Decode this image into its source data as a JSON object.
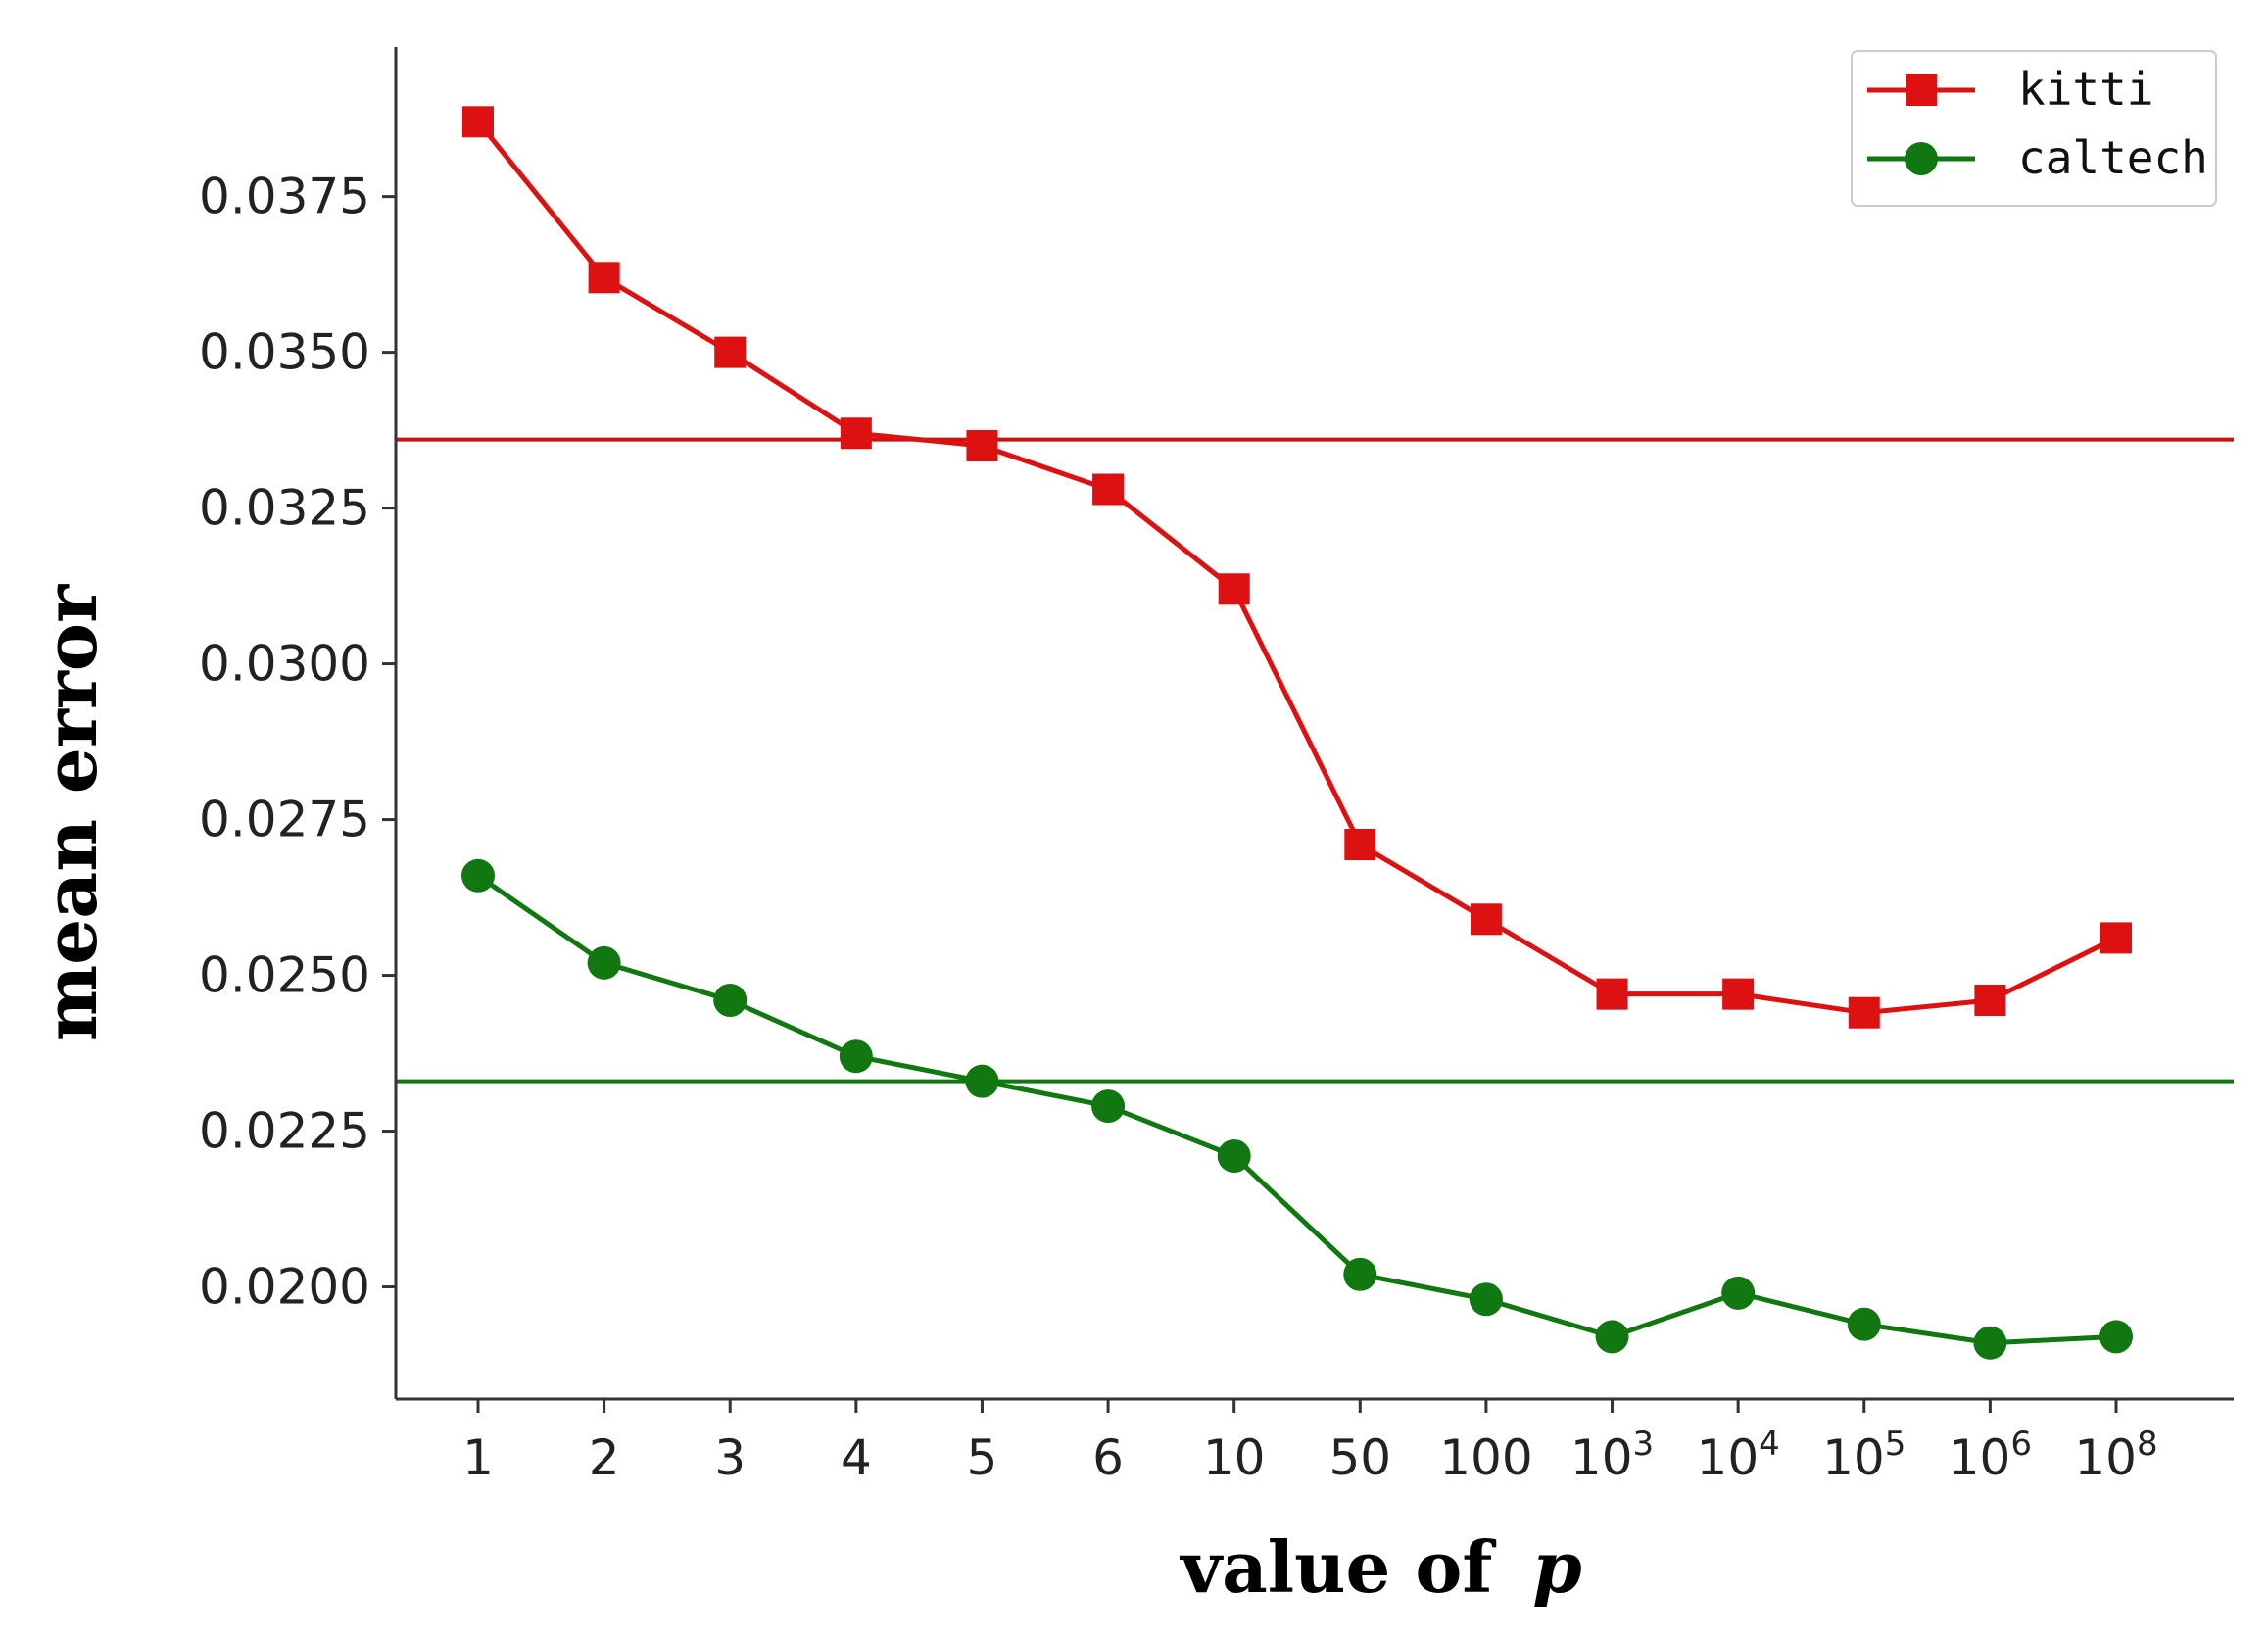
{
  "chart_data": {
    "type": "line",
    "xlabel": "value of",
    "xlabel_var": "p",
    "ylabel": "mean error",
    "categories": [
      {
        "base": "1",
        "sup": ""
      },
      {
        "base": "2",
        "sup": ""
      },
      {
        "base": "3",
        "sup": ""
      },
      {
        "base": "4",
        "sup": ""
      },
      {
        "base": "5",
        "sup": ""
      },
      {
        "base": "6",
        "sup": ""
      },
      {
        "base": "10",
        "sup": ""
      },
      {
        "base": "50",
        "sup": ""
      },
      {
        "base": "100",
        "sup": ""
      },
      {
        "base": "10",
        "sup": "3"
      },
      {
        "base": "10",
        "sup": "4"
      },
      {
        "base": "10",
        "sup": "5"
      },
      {
        "base": "10",
        "sup": "6"
      },
      {
        "base": "10",
        "sup": "8"
      }
    ],
    "ylim": [
      0.0182,
      0.0399
    ],
    "yticks": [
      0.02,
      0.0225,
      0.025,
      0.0275,
      0.03,
      0.0325,
      0.035,
      0.0375
    ],
    "ytick_labels": [
      "0.0200",
      "0.0225",
      "0.0250",
      "0.0275",
      "0.0300",
      "0.0325",
      "0.0350",
      "0.0375"
    ],
    "series": [
      {
        "name": "kitti",
        "color": "#dd1111",
        "marker": "square",
        "values": [
          0.0387,
          0.0362,
          0.035,
          0.0337,
          0.0335,
          0.0328,
          0.0312,
          0.0271,
          0.0259,
          0.0247,
          0.0247,
          0.0244,
          0.0246,
          0.0256
        ]
      },
      {
        "name": "caltech",
        "color": "#117711",
        "marker": "circle",
        "values": [
          0.0266,
          0.0252,
          0.0246,
          0.0237,
          0.0233,
          0.0229,
          0.0221,
          0.0202,
          0.0198,
          0.0192,
          0.0199,
          0.0194,
          0.0191,
          0.0192
        ]
      }
    ],
    "hlines": [
      {
        "value": 0.0336,
        "color": "#cc1111"
      },
      {
        "value": 0.0233,
        "color": "#117711"
      }
    ],
    "legend_position": "top-right",
    "grid": false
  }
}
